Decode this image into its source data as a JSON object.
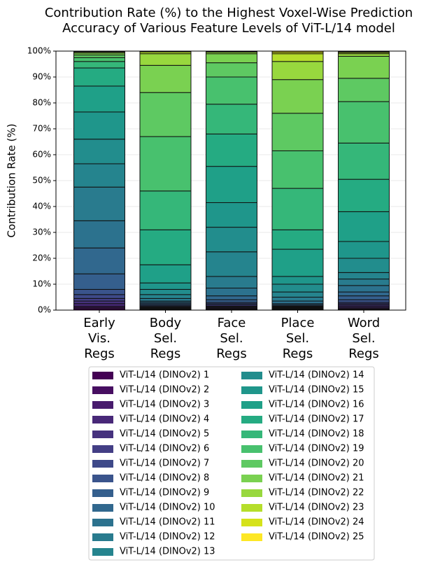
{
  "chart_data": {
    "type": "stacked-bar",
    "title": "Contribution Rate (%) to the Highest Voxel-Wise Prediction\nAccuracy of Various Feature Levels of ViT-L/14  model",
    "y_label": "Contribution Rate (%)",
    "categories": [
      "Early\nVis.\nRegs",
      "Body\nSel.\nRegs",
      "Face\nSel.\nRegs",
      "Place\nSel.\nRegs",
      "Word\nSel.\nRegs"
    ],
    "ylim": [
      0,
      100
    ],
    "yticks": [
      {
        "value": 0,
        "label": "0%"
      },
      {
        "value": 10,
        "label": "10%"
      },
      {
        "value": 20,
        "label": "20%"
      },
      {
        "value": 30,
        "label": "30%"
      },
      {
        "value": 40,
        "label": "40%"
      },
      {
        "value": 50,
        "label": "50%"
      },
      {
        "value": 60,
        "label": "60%"
      },
      {
        "value": 70,
        "label": "70%"
      },
      {
        "value": 80,
        "label": "80%"
      },
      {
        "value": 90,
        "label": "90%"
      },
      {
        "value": 100,
        "label": "100%"
      }
    ],
    "grid": true,
    "legend": "bottom",
    "series": [
      {
        "name": "ViT-L/14 (DINOv2) 1",
        "color": "#440154",
        "values": [
          0.5,
          0.2,
          0.3,
          0.2,
          0.3
        ]
      },
      {
        "name": "ViT-L/14 (DINOv2) 2",
        "color": "#470e61",
        "values": [
          0.5,
          0.2,
          0.3,
          0.2,
          0.3
        ]
      },
      {
        "name": "ViT-L/14 (DINOv2) 3",
        "color": "#481b6d",
        "values": [
          0.5,
          0.2,
          0.3,
          0.2,
          0.4
        ]
      },
      {
        "name": "ViT-L/14 (DINOv2) 4",
        "color": "#482878",
        "values": [
          1,
          0.2,
          0.3,
          0.2,
          0.5
        ]
      },
      {
        "name": "ViT-L/14 (DINOv2) 5",
        "color": "#46327e",
        "values": [
          1,
          0.2,
          0.3,
          0.2,
          0.5
        ]
      },
      {
        "name": "ViT-L/14 (DINOv2) 6",
        "color": "#433e85",
        "values": [
          1,
          0.3,
          0.5,
          0.2,
          0.5
        ]
      },
      {
        "name": "ViT-L/14 (DINOv2) 7",
        "color": "#3e4989",
        "values": [
          1.5,
          0.3,
          0.5,
          0.2,
          0.5
        ]
      },
      {
        "name": "ViT-L/14 (DINOv2) 8",
        "color": "#3a548c",
        "values": [
          2,
          0.4,
          0.5,
          0.2,
          1
        ]
      },
      {
        "name": "ViT-L/14 (DINOv2) 9",
        "color": "#355f8d",
        "values": [
          6,
          0.5,
          1,
          0.4,
          1.5
        ]
      },
      {
        "name": "ViT-L/14 (DINOv2) 10",
        "color": "#31688e",
        "values": [
          10,
          0.5,
          1.5,
          0.5,
          1.5
        ]
      },
      {
        "name": "ViT-L/14 (DINOv2) 11",
        "color": "#2c728e",
        "values": [
          10.5,
          0.5,
          3,
          1,
          2.5
        ]
      },
      {
        "name": "ViT-L/14 (DINOv2) 12",
        "color": "#297b8e",
        "values": [
          13,
          1,
          4.5,
          1.5,
          2.5
        ]
      },
      {
        "name": "ViT-L/14 (DINOv2) 13",
        "color": "#25848e",
        "values": [
          9,
          1.5,
          9.5,
          2,
          2.5
        ]
      },
      {
        "name": "ViT-L/14 (DINOv2) 14",
        "color": "#228d8d",
        "values": [
          9.5,
          2,
          9.5,
          3,
          5.5
        ]
      },
      {
        "name": "ViT-L/14 (DINOv2) 15",
        "color": "#1f968b",
        "values": [
          10.5,
          2.5,
          9.5,
          3,
          6.5
        ]
      },
      {
        "name": "ViT-L/14 (DINOv2) 16",
        "color": "#1fa088",
        "values": [
          10,
          7,
          14,
          10.5,
          11.5
        ]
      },
      {
        "name": "ViT-L/14 (DINOv2) 17",
        "color": "#25ab82",
        "values": [
          7,
          13.5,
          12.5,
          7.5,
          12.5
        ]
      },
      {
        "name": "ViT-L/14 (DINOv2) 18",
        "color": "#35b779",
        "values": [
          2.5,
          15,
          11.5,
          16,
          14
        ]
      },
      {
        "name": "ViT-L/14 (DINOv2) 19",
        "color": "#48c16e",
        "values": [
          1.5,
          21,
          10.5,
          14.5,
          16
        ]
      },
      {
        "name": "ViT-L/14 (DINOv2) 20",
        "color": "#5ec962",
        "values": [
          1,
          17,
          5.5,
          14.5,
          9
        ]
      },
      {
        "name": "ViT-L/14 (DINOv2) 21",
        "color": "#7ad151",
        "values": [
          0.7,
          10.5,
          3.5,
          13,
          8.5
        ]
      },
      {
        "name": "ViT-L/14 (DINOv2) 22",
        "color": "#98d83e",
        "values": [
          0.4,
          4.5,
          0.6,
          7,
          1
        ]
      },
      {
        "name": "ViT-L/14 (DINOv2) 23",
        "color": "#b5de2b",
        "values": [
          0.2,
          0.7,
          0.2,
          3,
          0.5
        ]
      },
      {
        "name": "ViT-L/14 (DINOv2) 24",
        "color": "#d5e21a",
        "values": [
          0.1,
          0.2,
          0.1,
          0.6,
          0.3
        ]
      },
      {
        "name": "ViT-L/14 (DINOv2) 25",
        "color": "#fde725",
        "values": [
          0.1,
          0.1,
          0.1,
          0.4,
          0.2
        ]
      }
    ]
  }
}
